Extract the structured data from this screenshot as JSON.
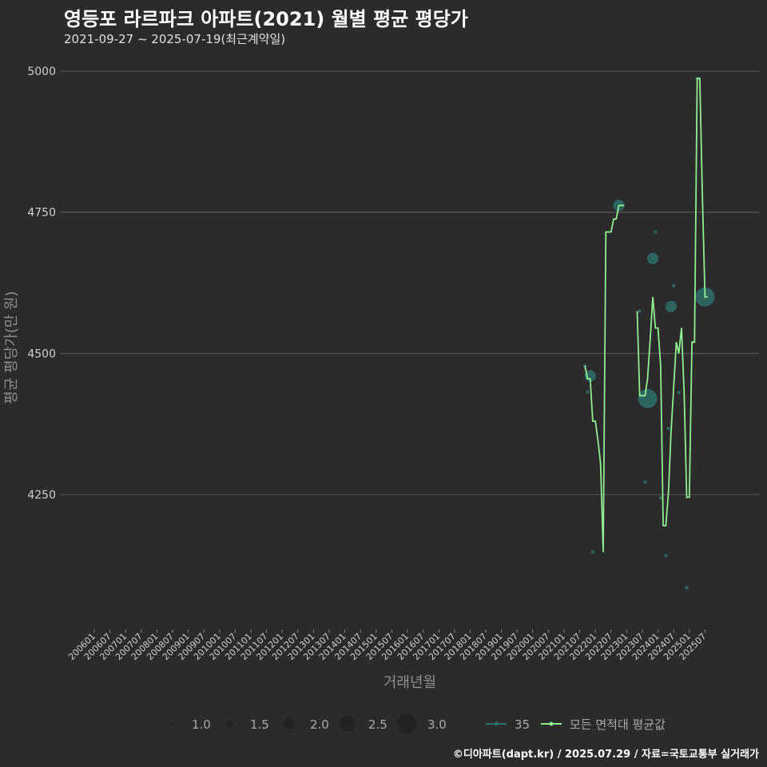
{
  "chart_data": {
    "type": "line",
    "title": "영등포 라르파크 아파트(2021) 월별 평균 평당가",
    "subtitle": "2021-09-27 ~ 2025-07-19(최근계약일)",
    "xlabel": "거래년월",
    "ylabel": "평균 평당가(만 원)",
    "caption": "©디아파트(dapt.kr) / 2025.07.29 / 자료=국토교통부 실거래가",
    "ylim": [
      4040,
      5050
    ],
    "y_ticks": [
      4250,
      4500,
      4750,
      5000
    ],
    "x_tick_labels": [
      "200601",
      "200607",
      "200701",
      "200707",
      "200801",
      "200807",
      "200901",
      "200907",
      "201001",
      "201007",
      "201101",
      "201107",
      "201201",
      "201207",
      "201301",
      "201307",
      "201401",
      "201407",
      "201501",
      "201507",
      "201601",
      "201607",
      "201701",
      "201707",
      "201801",
      "201807",
      "201901",
      "201907",
      "202001",
      "202007",
      "202101",
      "202107",
      "202201",
      "202207",
      "202301",
      "202307",
      "202401",
      "202407",
      "202501",
      "202507"
    ],
    "colors": {
      "line": "#90ee90",
      "points": "#2f6f6a",
      "grid": "#5a5a5a"
    },
    "series": [
      {
        "name": "모든 면적대 평균값",
        "points": [
          {
            "x": "202109",
            "y": 4478
          },
          {
            "x": "202110",
            "y": 4455
          },
          {
            "x": "202111",
            "y": 4455
          },
          {
            "x": "202112",
            "y": 4380
          },
          {
            "x": "202201",
            "y": 4380
          },
          {
            "x": "202202",
            "y": 4345
          },
          {
            "x": "202203",
            "y": 4305
          },
          {
            "x": "202204",
            "y": 4148
          },
          {
            "x": "202205",
            "y": 4715
          },
          {
            "x": "202206",
            "y": 4715
          },
          {
            "x": "202207",
            "y": 4715
          },
          {
            "x": "202208",
            "y": 4738
          },
          {
            "x": "202209",
            "y": 4738
          },
          {
            "x": "202210",
            "y": 4762
          },
          {
            "x": "202211",
            "y": 4762
          },
          {
            "x": "202212",
            "y": 4762
          },
          {
            "x": "202301",
            "y": null
          },
          {
            "x": "202302",
            "y": null
          },
          {
            "x": "202303",
            "y": null
          },
          {
            "x": "202304",
            "y": null
          },
          {
            "x": "202305",
            "y": 4575
          },
          {
            "x": "202306",
            "y": 4425
          },
          {
            "x": "202307",
            "y": 4425
          },
          {
            "x": "202308",
            "y": 4425
          },
          {
            "x": "202309",
            "y": 4455
          },
          {
            "x": "202310",
            "y": 4525
          },
          {
            "x": "202311",
            "y": 4600
          },
          {
            "x": "202312",
            "y": 4545
          },
          {
            "x": "202401",
            "y": 4545
          },
          {
            "x": "202402",
            "y": 4478
          },
          {
            "x": "202403",
            "y": 4195
          },
          {
            "x": "202404",
            "y": 4195
          },
          {
            "x": "202405",
            "y": 4255
          },
          {
            "x": "202406",
            "y": 4360
          },
          {
            "x": "202407",
            "y": 4440
          },
          {
            "x": "202408",
            "y": 4520
          },
          {
            "x": "202409",
            "y": 4500
          },
          {
            "x": "202410",
            "y": 4545
          },
          {
            "x": "202411",
            "y": 4430
          },
          {
            "x": "202412",
            "y": 4245
          },
          {
            "x": "202501",
            "y": 4245
          },
          {
            "x": "202502",
            "y": 4520
          },
          {
            "x": "202503",
            "y": 4520
          },
          {
            "x": "202504",
            "y": 4987
          },
          {
            "x": "202505",
            "y": 4987
          },
          {
            "x": "202506",
            "y": 4780
          },
          {
            "x": "202507",
            "y": 4600
          },
          {
            "x": "202508",
            "y": 4600
          }
        ]
      },
      {
        "name": "35",
        "points": [
          {
            "x": "202109",
            "y": 4478,
            "count": 1
          },
          {
            "x": "202110",
            "y": 4432,
            "count": 1
          },
          {
            "x": "202111",
            "y": 4460,
            "count": 2
          },
          {
            "x": "202112",
            "y": 4148,
            "count": 1
          },
          {
            "x": "202210",
            "y": 4762,
            "count": 2
          },
          {
            "x": "202306",
            "y": 4575,
            "count": 1
          },
          {
            "x": "202308",
            "y": 4272,
            "count": 1
          },
          {
            "x": "202309",
            "y": 4420,
            "count": 3
          },
          {
            "x": "202311",
            "y": 4668,
            "count": 2
          },
          {
            "x": "202312",
            "y": 4715,
            "count": 1
          },
          {
            "x": "202402",
            "y": 4244,
            "count": 1
          },
          {
            "x": "202404",
            "y": 4142,
            "count": 1
          },
          {
            "x": "202405",
            "y": 4367,
            "count": 1
          },
          {
            "x": "202406",
            "y": 4583,
            "count": 2
          },
          {
            "x": "202407",
            "y": 4620,
            "count": 1
          },
          {
            "x": "202409",
            "y": 4431,
            "count": 1
          },
          {
            "x": "202412",
            "y": 4085,
            "count": 1
          },
          {
            "x": "202504",
            "y": 4987,
            "count": 1
          },
          {
            "x": "202507",
            "y": 4600,
            "count": 3
          }
        ]
      }
    ],
    "legend": {
      "size_values": [
        "1.0",
        "1.5",
        "2.0",
        "2.5",
        "3.0"
      ],
      "series_labels": [
        "35",
        "모든 면적대 평균값"
      ]
    }
  }
}
